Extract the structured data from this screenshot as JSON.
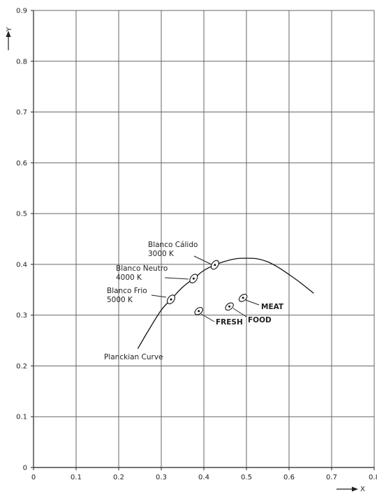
{
  "chart_data": {
    "type": "scatter",
    "title": "",
    "xlabel": "X",
    "ylabel": "Y",
    "xlim": [
      0,
      0.8
    ],
    "ylim": [
      0,
      0.9
    ],
    "grid": true,
    "x_ticks": [
      "0",
      "0.1",
      "0.2",
      "0.3",
      "0.4",
      "0.5",
      "0.6",
      "0.7",
      "0.8"
    ],
    "y_ticks": [
      "0",
      "0.1",
      "0.2",
      "0.3",
      "0.4",
      "0.5",
      "0.6",
      "0.7",
      "0.8",
      "0.9"
    ],
    "curve": {
      "label": "Planckian Curve",
      "points": [
        [
          0.245,
          0.234
        ],
        [
          0.27,
          0.27
        ],
        [
          0.3,
          0.31
        ],
        [
          0.323,
          0.331
        ],
        [
          0.35,
          0.355
        ],
        [
          0.376,
          0.372
        ],
        [
          0.4,
          0.388
        ],
        [
          0.426,
          0.399
        ],
        [
          0.45,
          0.406
        ],
        [
          0.475,
          0.411
        ],
        [
          0.5,
          0.412
        ],
        [
          0.525,
          0.411
        ],
        [
          0.55,
          0.405
        ],
        [
          0.575,
          0.394
        ],
        [
          0.6,
          0.38
        ],
        [
          0.625,
          0.365
        ],
        [
          0.658,
          0.343
        ]
      ]
    },
    "points": [
      {
        "x": 0.426,
        "y": 0.399,
        "label_line1": "Blanco Cálido",
        "label_line2": "3000 K"
      },
      {
        "x": 0.376,
        "y": 0.372,
        "label_line1": "Blanco Neutro",
        "label_line2": "4000 K"
      },
      {
        "x": 0.323,
        "y": 0.331,
        "label_line1": "Blanco Frio",
        "label_line2": "5000 K"
      },
      {
        "x": 0.388,
        "y": 0.308,
        "label_line1": "FRESH",
        "label_line2": ""
      },
      {
        "x": 0.46,
        "y": 0.317,
        "label_line1": "FOOD",
        "label_line2": ""
      },
      {
        "x": 0.492,
        "y": 0.334,
        "label_line1": "MEAT",
        "label_line2": ""
      }
    ]
  }
}
